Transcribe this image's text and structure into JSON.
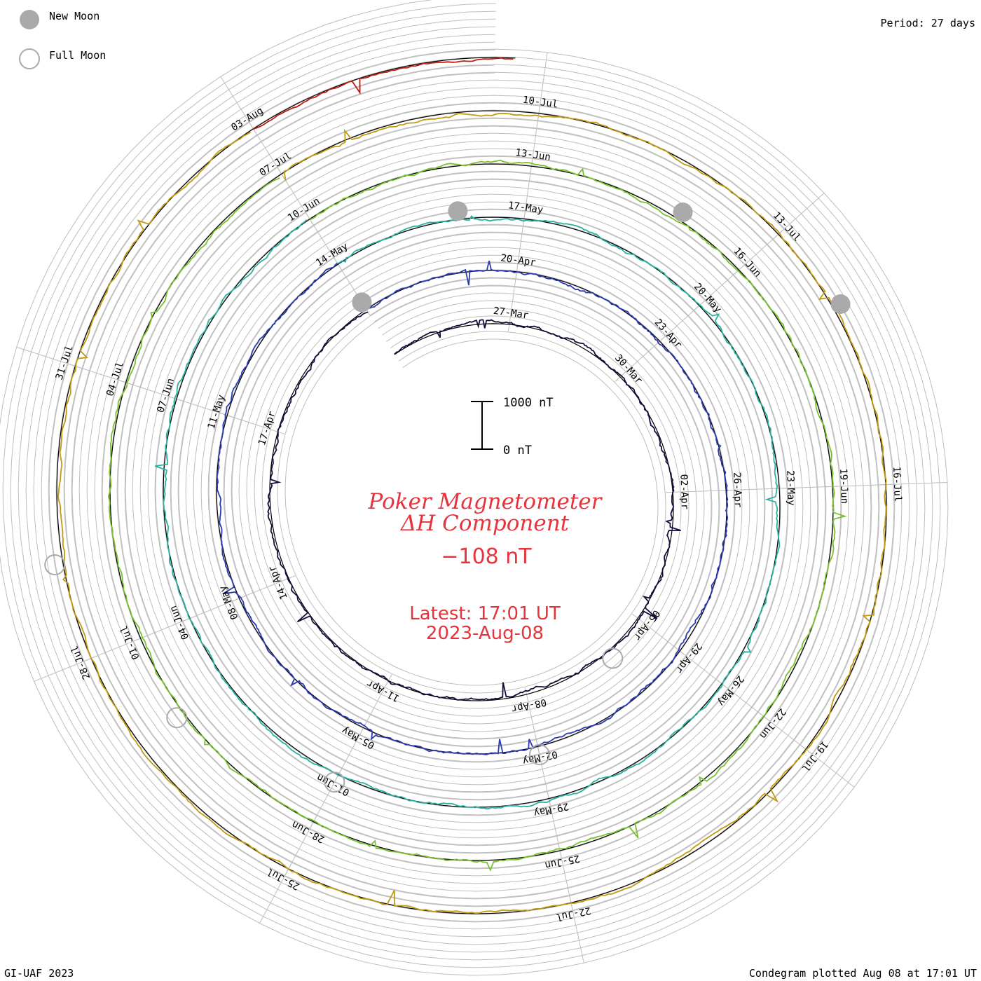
{
  "legend": {
    "new_moon_label": "New Moon",
    "full_moon_label": "Full Moon"
  },
  "period_label": "Period: 27 days",
  "footer": {
    "left": "GI-UAF 2023",
    "right": "Condegram plotted Aug 08 at 17:01 UT"
  },
  "scale_bar": {
    "top_label": "1000 nT",
    "bottom_label": "0 nT"
  },
  "center": {
    "title_line1": "Poker Magnetometer",
    "title_line2": "ΔH Component",
    "value": "−108 nT",
    "latest_line1": "Latest: 17:01 UT",
    "latest_line2": "2023-Aug-08"
  },
  "colors": {
    "title": "#e8323c",
    "grid": "#bdbdbd",
    "baseline": "#000000",
    "new_moon": "#aaaaaa",
    "full_moon": "#aaaaaa"
  },
  "chart_data": {
    "type": "line",
    "subtype": "condegram-spiral",
    "period_days": 27,
    "units": "nT",
    "scale_nT": [
      0,
      1000
    ],
    "series": [
      {
        "start": "2023-03-24",
        "color": "#1a0a3c",
        "date_labels": [
          "27-Mar",
          "30-Mar",
          "02-Apr",
          "05-Apr",
          "08-Apr",
          "11-Apr",
          "14-Apr",
          "17-Apr"
        ]
      },
      {
        "start": "2023-04-20",
        "color": "#2a3ab0",
        "date_labels": [
          "20-Apr",
          "23-Apr",
          "26-Apr",
          "29-Apr",
          "02-May",
          "05-May",
          "08-May",
          "11-May",
          "14-May"
        ]
      },
      {
        "start": "2023-05-17",
        "color": "#2ab0a0",
        "date_labels": [
          "17-May",
          "20-May",
          "23-May",
          "26-May",
          "29-May",
          "01-Jun",
          "04-Jun",
          "07-Jun",
          "10-Jun"
        ]
      },
      {
        "start": "2023-06-13",
        "color": "#7ac030",
        "date_labels": [
          "13-Jun",
          "16-Jun",
          "19-Jun",
          "22-Jun",
          "25-Jun",
          "28-Jun",
          "01-Jul",
          "04-Jul",
          "07-Jul"
        ]
      },
      {
        "start": "2023-07-10",
        "color": "#c09a10",
        "date_labels": [
          "10-Jul",
          "13-Jul",
          "16-Jul",
          "19-Jul",
          "22-Jul",
          "25-Jul",
          "28-Jul",
          "31-Jul",
          "03-Aug"
        ]
      },
      {
        "start": "2023-08-06",
        "color": "#c01a10",
        "date_labels": []
      }
    ],
    "new_moons": [
      "2023-04-20",
      "2023-05-19",
      "2023-06-18",
      "2023-07-17"
    ],
    "full_moons": [
      "2023-04-06",
      "2023-05-05",
      "2023-06-04",
      "2023-07-03",
      "2023-08-01"
    ]
  }
}
